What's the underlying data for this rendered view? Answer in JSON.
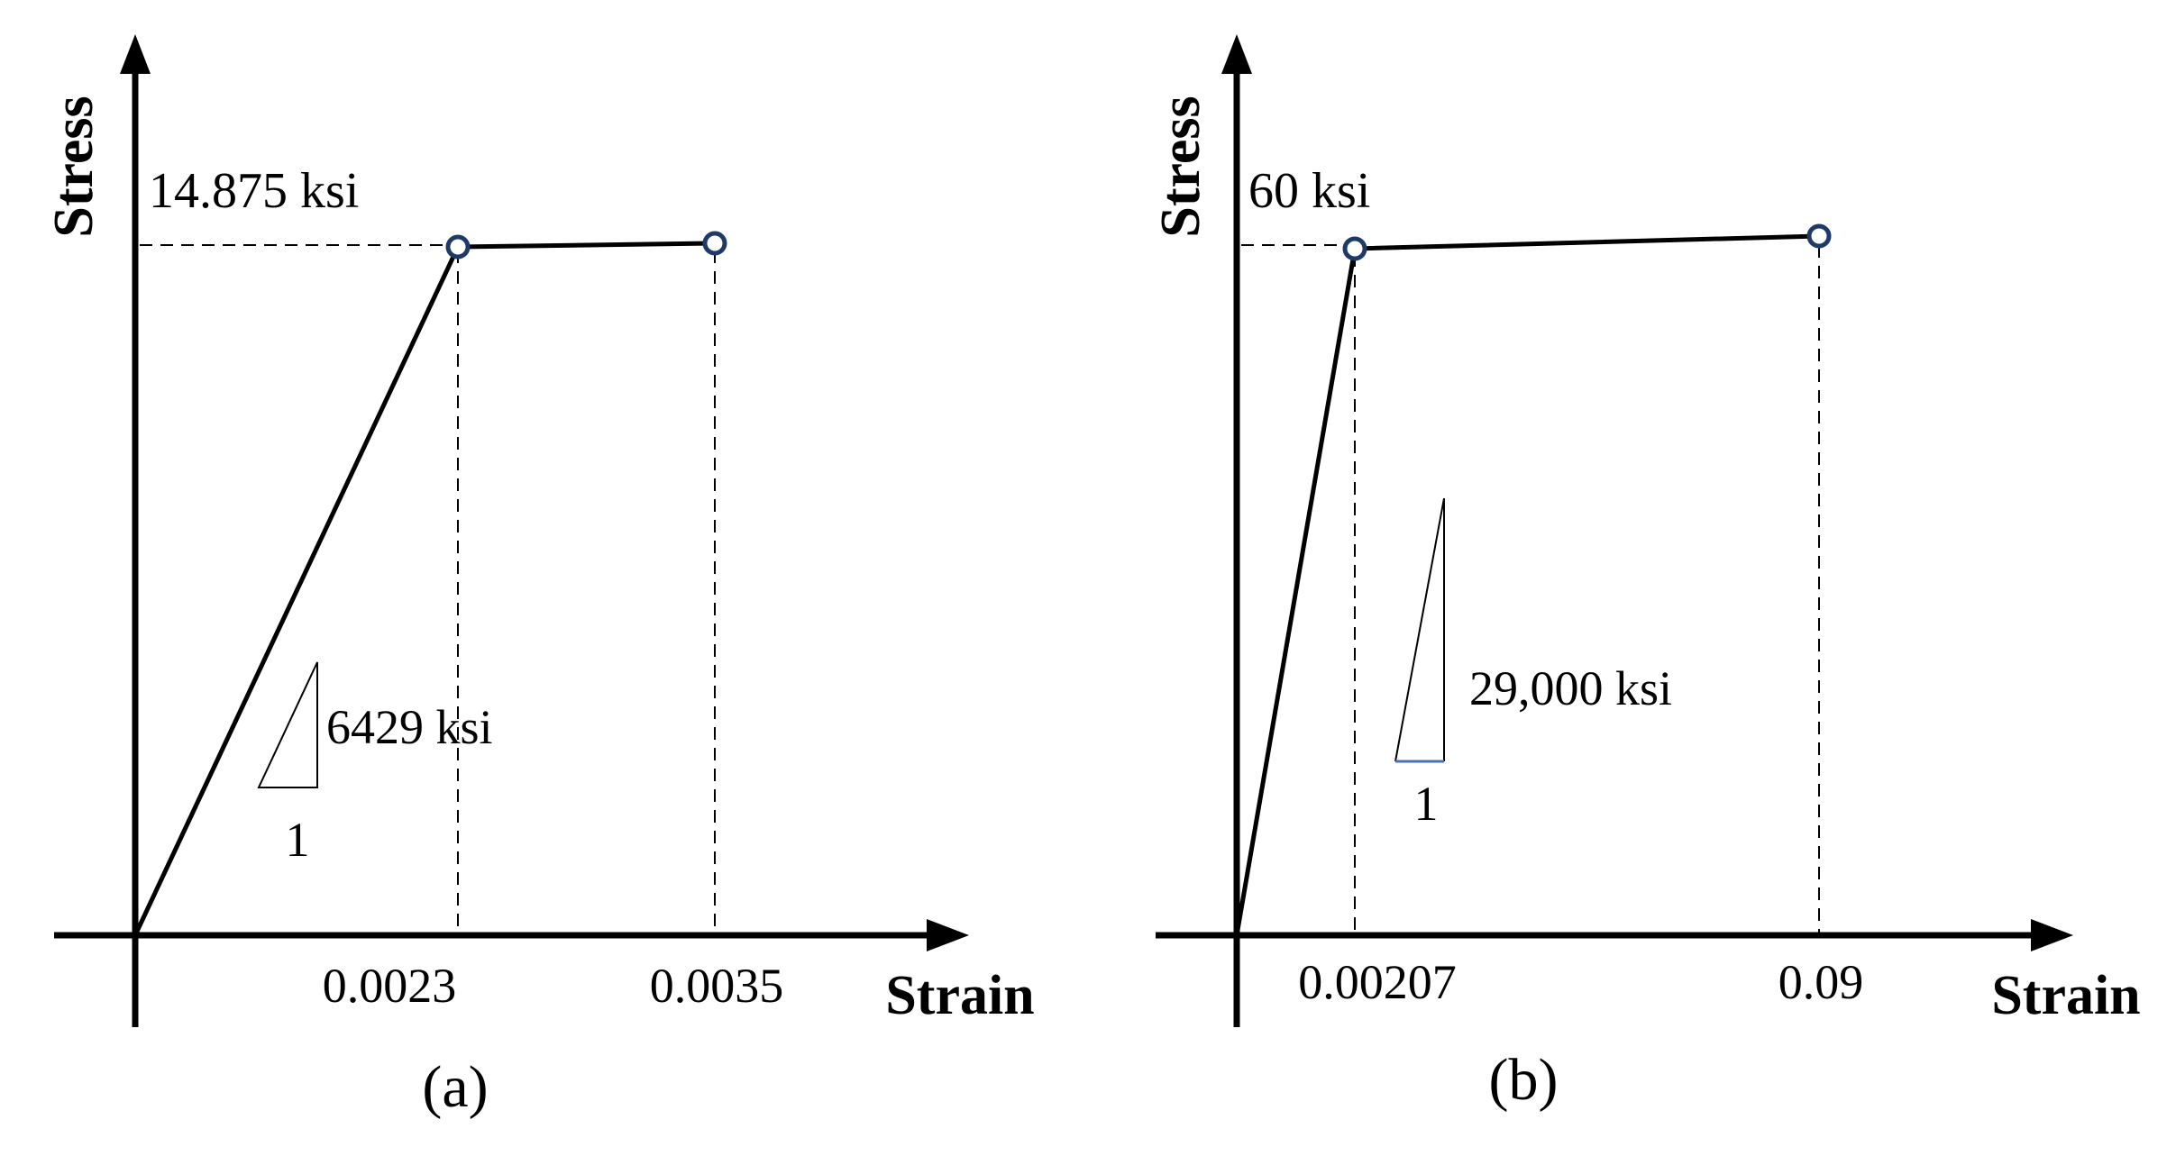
{
  "panels": [
    {
      "caption": "(a)",
      "x_axis_label": "Strain",
      "y_axis_label": "Stress",
      "stress_label": "14.875 ksi",
      "slope_label": "6429 ksi",
      "slope_run_label": "1",
      "strain_labels": [
        "0.0023",
        "0.0035"
      ]
    },
    {
      "caption": "(b)",
      "x_axis_label": "Strain",
      "y_axis_label": "Stress",
      "stress_label": "60 ksi",
      "slope_label": "29,000 ksi",
      "slope_run_label": "1",
      "strain_labels": [
        "0.00207",
        "0.09"
      ]
    }
  ],
  "colors": {
    "axes": "#000000",
    "marker_stroke": "#1f3a68",
    "slope_base_b": "#4a6fb8"
  }
}
